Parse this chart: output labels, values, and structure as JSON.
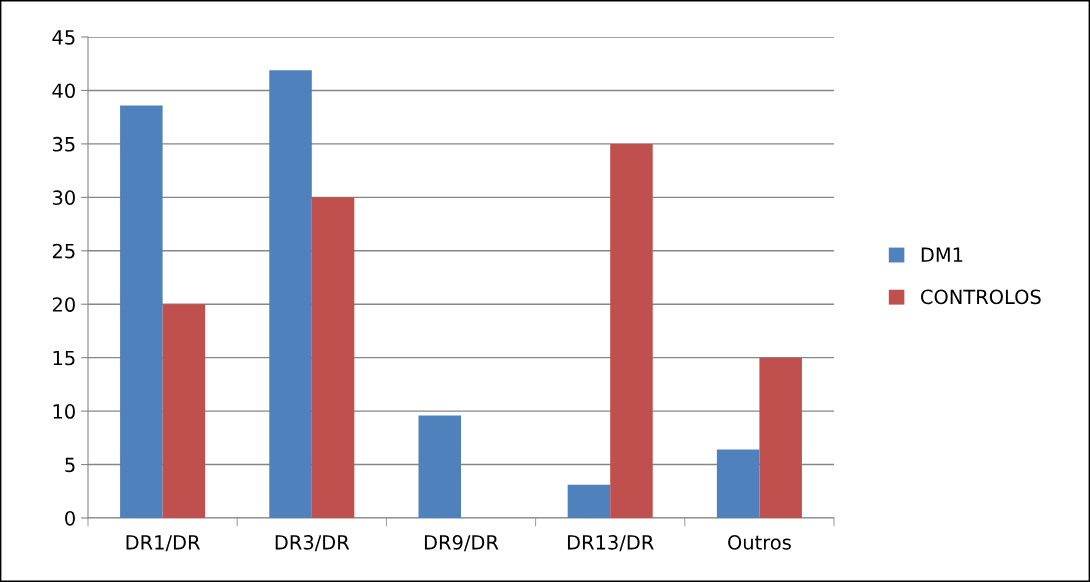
{
  "chart_data": {
    "type": "bar",
    "categories": [
      "DR1/DR",
      "DR3/DR",
      "DR9/DR",
      "DR13/DR",
      "Outros"
    ],
    "series": [
      {
        "name": "DM1",
        "color": "#4f81bd",
        "values": [
          38.6,
          41.9,
          9.6,
          3.1,
          6.4
        ]
      },
      {
        "name": "CONTROLOS",
        "color": "#c0504d",
        "values": [
          20,
          30,
          0,
          35,
          15
        ]
      }
    ],
    "ylim": [
      0,
      45
    ],
    "yticks": [
      0,
      5,
      10,
      15,
      20,
      25,
      30,
      35,
      40,
      45
    ],
    "grid": "y",
    "legend": "right"
  }
}
